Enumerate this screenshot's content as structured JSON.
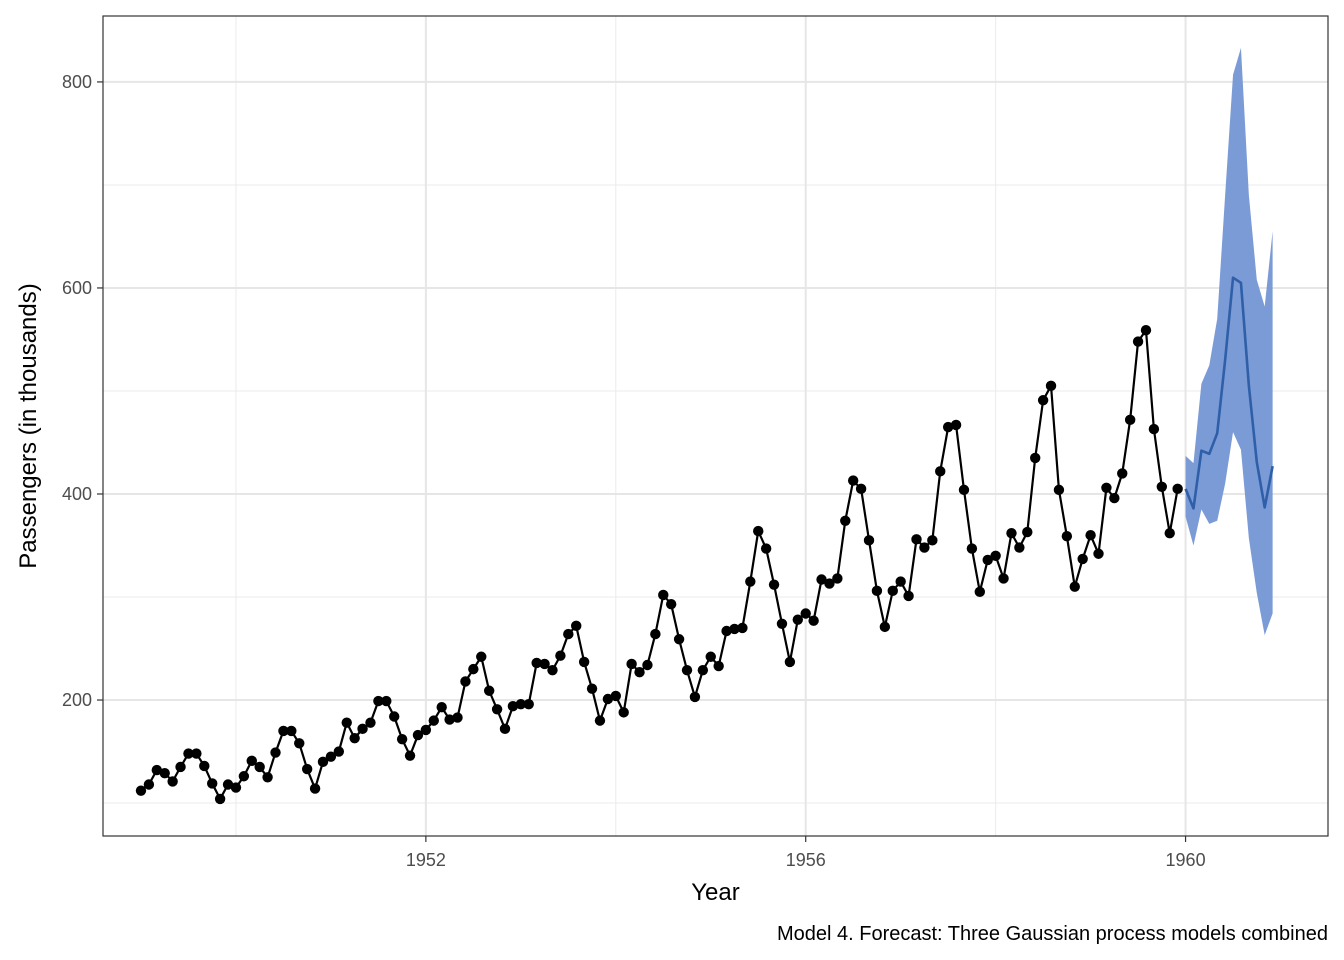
{
  "chart_data": {
    "type": "line",
    "xlabel": "Year",
    "ylabel": "Passengers (in thousands)",
    "caption": "Model 4. Forecast: Three Gaussian process models combined",
    "xlim": [
      1948.6,
      1961.5
    ],
    "ylim": [
      68,
      864
    ],
    "x_ticks": [
      1952,
      1956,
      1960
    ],
    "x_tick_labels": [
      "1952",
      "1956",
      "1960"
    ],
    "x_minor_ticks": [
      1950,
      1954,
      1958
    ],
    "y_ticks": [
      200,
      400,
      600,
      800
    ],
    "y_tick_labels": [
      "200",
      "400",
      "600",
      "800"
    ],
    "y_minor_ticks": [
      100,
      300,
      500,
      700
    ],
    "grid": true,
    "colors": {
      "observed": "#000000",
      "forecast_line": "#2e5fa8",
      "forecast_band": "#7b9bd6"
    },
    "series": [
      {
        "start_year": 1949,
        "step": "monthly",
        "values": [
          112,
          118,
          132,
          129,
          121,
          135,
          148,
          148,
          136,
          119,
          104,
          118,
          115,
          126,
          141,
          135,
          125,
          149,
          170,
          170,
          158,
          133,
          114,
          140,
          145,
          150,
          178,
          163,
          172,
          178,
          199,
          199,
          184,
          162,
          146,
          166,
          171,
          180,
          193,
          181,
          183,
          218,
          230,
          242,
          209,
          191,
          172,
          194,
          196,
          196,
          236,
          235,
          229,
          243,
          264,
          272,
          237,
          211,
          180,
          201,
          204,
          188,
          235,
          227,
          234,
          264,
          302,
          293,
          259,
          229,
          203,
          229,
          242,
          233,
          267,
          269,
          270,
          315,
          364,
          347,
          312,
          274,
          237,
          278,
          284,
          277,
          317,
          313,
          318,
          374,
          413,
          405,
          355,
          306,
          271,
          306,
          315,
          301,
          356,
          348,
          355,
          422,
          465,
          467,
          404,
          347,
          305,
          336,
          340,
          318,
          362,
          348,
          363,
          435,
          491,
          505,
          404,
          359,
          310,
          337,
          360,
          342,
          406,
          396,
          420,
          472,
          548,
          559,
          463,
          407,
          362,
          405
        ]
      },
      {
        "start_year": 1960,
        "step": "monthly",
        "values": [
          405,
          386,
          442,
          439,
          459,
          530,
          610,
          605,
          505,
          431,
          387,
          427
        ],
        "lower": [
          378,
          350,
          385,
          371,
          374,
          410,
          460,
          443,
          357,
          304,
          263,
          284
        ],
        "upper": [
          437,
          430,
          507,
          525,
          570,
          690,
          807,
          833,
          690,
          608,
          582,
          655
        ]
      }
    ]
  }
}
